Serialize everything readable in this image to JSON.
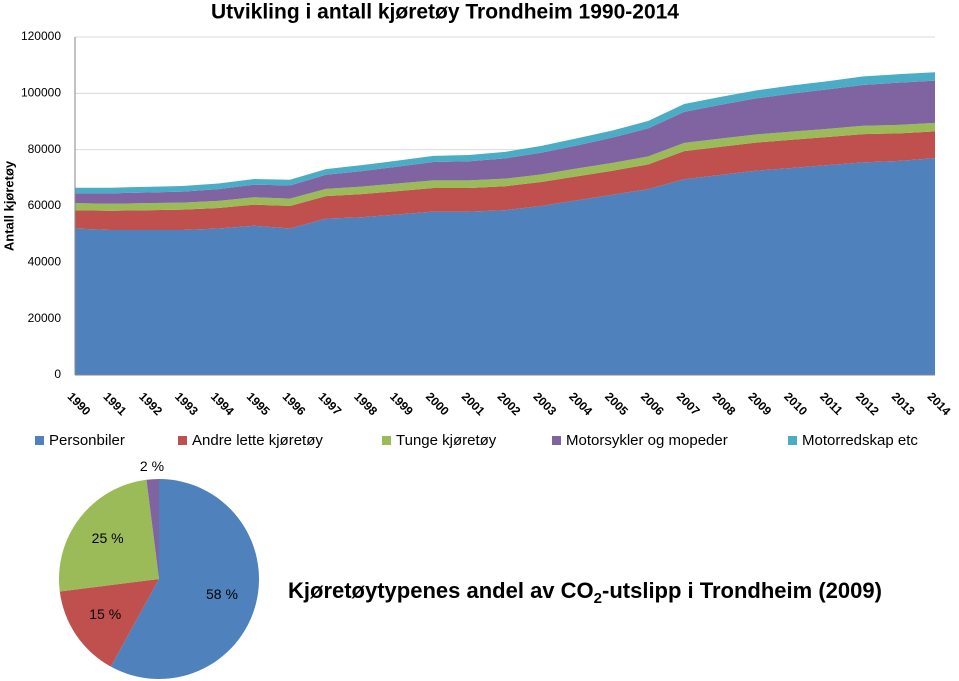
{
  "chart_data": [
    {
      "type": "stacked_area",
      "title": "Utvikling i antall kjøretøy Trondheim 1990-2014",
      "y_label": "Antall kjøretøy",
      "categories": [
        "1990",
        "1991",
        "1992",
        "1993",
        "1994",
        "1995",
        "1996",
        "1997",
        "1998",
        "1999",
        "2000",
        "2001",
        "2002",
        "2003",
        "2004",
        "2005",
        "2006",
        "2007",
        "2008",
        "2009",
        "2010",
        "2011",
        "2012",
        "2013",
        "2014"
      ],
      "series": [
        {
          "name": "Personbiler",
          "color": "#4f81bd",
          "values": [
            52000,
            51500,
            51500,
            51500,
            52000,
            53000,
            52000,
            55500,
            56000,
            57000,
            58000,
            58000,
            58500,
            60000,
            62000,
            64000,
            66000,
            69500,
            71000,
            72500,
            73500,
            74500,
            75500,
            76000,
            77000
          ]
        },
        {
          "name": "Andre lette kjøretøy",
          "color": "#c0504d",
          "values": [
            6500,
            6800,
            7000,
            7200,
            7300,
            7500,
            8000,
            8000,
            8200,
            8300,
            8400,
            8400,
            8500,
            8500,
            8500,
            8500,
            8800,
            10000,
            10000,
            10000,
            10000,
            10000,
            10000,
            9800,
            9500
          ]
        },
        {
          "name": "Tunge kjøretøy",
          "color": "#9bbb59",
          "values": [
            2500,
            2500,
            2500,
            2500,
            2500,
            2600,
            2600,
            2600,
            2700,
            2700,
            2700,
            2700,
            2700,
            2700,
            2800,
            2800,
            2800,
            2900,
            2900,
            2900,
            2900,
            2900,
            3000,
            3000,
            3000
          ]
        },
        {
          "name": "Motorsykler og mopeder",
          "color": "#8064a2",
          "values": [
            3500,
            3700,
            3800,
            3900,
            4200,
            4500,
            4700,
            5000,
            5500,
            6000,
            6500,
            6800,
            7200,
            7700,
            8200,
            9000,
            10000,
            11000,
            12000,
            12800,
            13500,
            14000,
            14500,
            15000,
            15000
          ]
        },
        {
          "name": "Motorredskap etc",
          "color": "#4bacc6",
          "values": [
            2000,
            2000,
            2000,
            2000,
            2000,
            2000,
            2000,
            2000,
            2100,
            2100,
            2200,
            2200,
            2300,
            2400,
            2500,
            2500,
            2600,
            2800,
            2800,
            2800,
            2900,
            2900,
            3000,
            3000,
            3000
          ]
        }
      ],
      "ylim": [
        0,
        120000
      ],
      "yticks": [
        0,
        20000,
        40000,
        60000,
        80000,
        100000,
        120000
      ],
      "grid": true,
      "legend": "bottom"
    },
    {
      "type": "pie",
      "title_parts": [
        "Kjøretøytypenes andel av CO",
        "2",
        "-utslipp i Trondheim (2009)"
      ],
      "values": [
        58,
        15,
        25,
        2
      ],
      "value_labels": [
        "58 %",
        "15 %",
        "25 %",
        "2 %"
      ],
      "colors": [
        "#4f81bd",
        "#c0504d",
        "#9bbb59",
        "#8064a2"
      ]
    }
  ]
}
